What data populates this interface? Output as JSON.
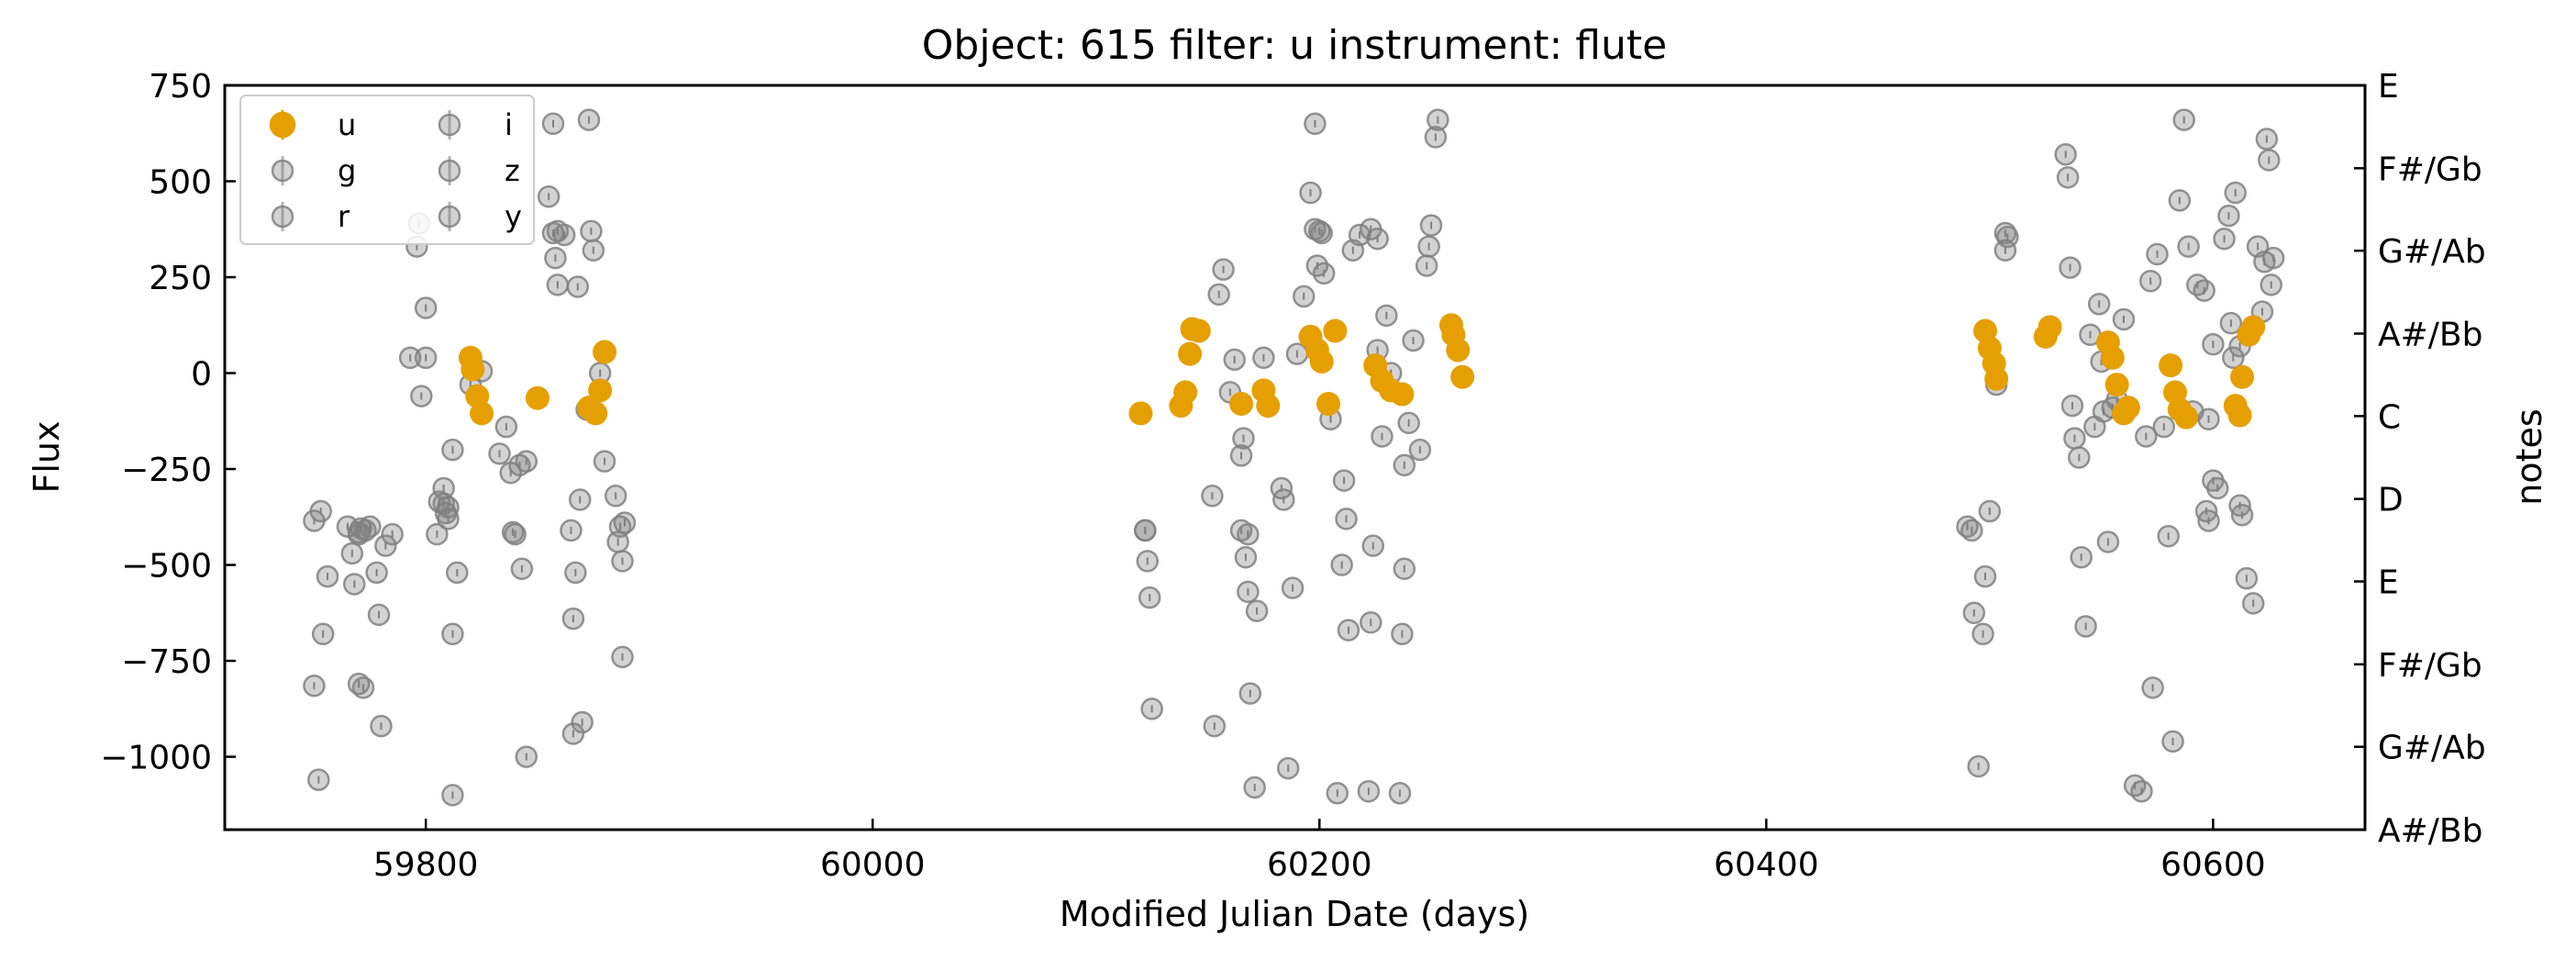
{
  "chart_data": {
    "type": "scatter",
    "title": "Object: 615 filter: u instrument: flute",
    "xlabel": "Modified Julian Date (days)",
    "ylabel": "Flux",
    "y2label": "notes",
    "xlim": [
      59710,
      60668
    ],
    "ylim": [
      -1190,
      750
    ],
    "xticks": [
      59800,
      60000,
      60200,
      60400,
      60600
    ],
    "yticks": [
      750,
      500,
      250,
      0,
      -250,
      -500,
      -750,
      -1000
    ],
    "ytick_labels": [
      "750",
      "500",
      "250",
      "0",
      "−250",
      "−500",
      "−750",
      "−1000"
    ],
    "y2ticks": [
      {
        "y": 750,
        "label": "E"
      },
      {
        "y": 534,
        "label": "F#/Gb"
      },
      {
        "y": 319,
        "label": "G#/Ab"
      },
      {
        "y": 103,
        "label": "A#/Bb"
      },
      {
        "y": -112,
        "label": "C"
      },
      {
        "y": -328,
        "label": "D"
      },
      {
        "y": -543,
        "label": "E"
      },
      {
        "y": -759,
        "label": "F#/Gb"
      },
      {
        "y": -974,
        "label": "G#/Ab"
      },
      {
        "y": -1190,
        "label": "A#/Bb"
      }
    ],
    "legend": {
      "placement": "top-left",
      "columns": 2,
      "entries": [
        "u",
        "g",
        "r",
        "i",
        "z",
        "y"
      ]
    },
    "colors": {
      "u": "#e69f00",
      "others": "#808080"
    },
    "grid": false,
    "series": [
      {
        "name": "u",
        "highlight": true,
        "points": [
          [
            59820,
            40
          ],
          [
            59821,
            10
          ],
          [
            59823,
            -60
          ],
          [
            59825,
            -105
          ],
          [
            59850,
            -65
          ],
          [
            59873,
            -90
          ],
          [
            59876,
            -105
          ],
          [
            59878,
            -45
          ],
          [
            59880,
            55
          ],
          [
            60120,
            -105
          ],
          [
            60138,
            -85
          ],
          [
            60140,
            -50
          ],
          [
            60142,
            50
          ],
          [
            60143,
            115
          ],
          [
            60146,
            110
          ],
          [
            60165,
            -80
          ],
          [
            60175,
            -45
          ],
          [
            60177,
            -85
          ],
          [
            60196,
            95
          ],
          [
            60199,
            60
          ],
          [
            60201,
            30
          ],
          [
            60204,
            -80
          ],
          [
            60207,
            110
          ],
          [
            60225,
            20
          ],
          [
            60228,
            -20
          ],
          [
            60232,
            -45
          ],
          [
            60237,
            -55
          ],
          [
            60259,
            125
          ],
          [
            60260,
            100
          ],
          [
            60262,
            60
          ],
          [
            60264,
            -10
          ],
          [
            60498,
            110
          ],
          [
            60500,
            65
          ],
          [
            60502,
            25
          ],
          [
            60503,
            -15
          ],
          [
            60525,
            95
          ],
          [
            60527,
            120
          ],
          [
            60553,
            80
          ],
          [
            60555,
            40
          ],
          [
            60557,
            -30
          ],
          [
            60560,
            -105
          ],
          [
            60562,
            -90
          ],
          [
            60581,
            20
          ],
          [
            60583,
            -50
          ],
          [
            60585,
            -95
          ],
          [
            60588,
            -115
          ],
          [
            60610,
            -85
          ],
          [
            60612,
            -110
          ],
          [
            60613,
            -10
          ],
          [
            60616,
            100
          ],
          [
            60618,
            120
          ]
        ]
      },
      {
        "name": "g",
        "points": [
          [
            59750,
            -385
          ],
          [
            59752,
            -1060
          ],
          [
            59753,
            -360
          ],
          [
            59754,
            -680
          ],
          [
            59756,
            -530
          ],
          [
            59750,
            -815
          ],
          [
            59765,
            -400
          ],
          [
            59767,
            -470
          ],
          [
            59768,
            -550
          ],
          [
            59770,
            -810
          ],
          [
            59772,
            -820
          ],
          [
            59770,
            -415
          ],
          [
            59775,
            -400
          ],
          [
            59778,
            -520
          ],
          [
            59779,
            -630
          ],
          [
            59780,
            -920
          ],
          [
            59782,
            -450
          ],
          [
            59785,
            -420
          ],
          [
            59793,
            40
          ],
          [
            59796,
            330
          ],
          [
            59797,
            390
          ],
          [
            59798,
            -60
          ],
          [
            59800,
            170
          ],
          [
            59800,
            40
          ],
          [
            59805,
            -420
          ],
          [
            59806,
            -335
          ],
          [
            59808,
            -300
          ],
          [
            59809,
            -365
          ],
          [
            59810,
            -350
          ],
          [
            59812,
            -200
          ],
          [
            59814,
            -520
          ],
          [
            59812,
            -1100
          ],
          [
            59812,
            -680
          ],
          [
            59820,
            -30
          ],
          [
            59825,
            5
          ],
          [
            59833,
            -210
          ],
          [
            59838,
            -260
          ],
          [
            59836,
            -140
          ],
          [
            59840,
            -420
          ],
          [
            59842,
            -240
          ],
          [
            59843,
            -510
          ],
          [
            59845,
            -1000
          ],
          [
            59845,
            -230
          ],
          [
            59855,
            460
          ],
          [
            59857,
            650
          ],
          [
            59858,
            300
          ],
          [
            59859,
            230
          ],
          [
            59862,
            360
          ],
          [
            59865,
            -410
          ],
          [
            59866,
            -640
          ],
          [
            59866,
            -940
          ],
          [
            59867,
            -520
          ],
          [
            59868,
            225
          ],
          [
            59869,
            -330
          ],
          [
            59870,
            -910
          ],
          [
            59873,
            660
          ],
          [
            59874,
            370
          ],
          [
            59875,
            320
          ],
          [
            59878,
            0
          ],
          [
            59880,
            -230
          ],
          [
            59885,
            -320
          ],
          [
            59886,
            -440
          ],
          [
            59888,
            -740
          ],
          [
            59889,
            -390
          ],
          [
            59887,
            -400
          ],
          [
            59888,
            -490
          ]
        ]
      },
      {
        "name": "r",
        "points": [
          [
            60122,
            -410
          ],
          [
            60123,
            -490
          ],
          [
            60124,
            -585
          ],
          [
            60125,
            -875
          ],
          [
            60152,
            -320
          ],
          [
            60153,
            -920
          ],
          [
            60155,
            205
          ],
          [
            60157,
            270
          ],
          [
            60160,
            -50
          ],
          [
            60162,
            35
          ],
          [
            60165,
            -215
          ],
          [
            60166,
            -170
          ],
          [
            60167,
            -480
          ],
          [
            60168,
            -570
          ],
          [
            60169,
            -835
          ],
          [
            60171,
            -1080
          ],
          [
            60172,
            -620
          ],
          [
            60175,
            40
          ],
          [
            60183,
            -300
          ],
          [
            60184,
            -330
          ],
          [
            60186,
            -1030
          ],
          [
            60188,
            -560
          ],
          [
            60190,
            50
          ],
          [
            60193,
            200
          ],
          [
            60196,
            470
          ],
          [
            60198,
            650
          ],
          [
            60199,
            280
          ],
          [
            60200,
            370
          ],
          [
            60202,
            260
          ],
          [
            60205,
            -120
          ],
          [
            60208,
            -1095
          ],
          [
            60210,
            -500
          ],
          [
            60211,
            -280
          ],
          [
            60212,
            -380
          ],
          [
            60213,
            -670
          ],
          [
            60215,
            320
          ],
          [
            60218,
            360
          ],
          [
            60222,
            -1090
          ],
          [
            60223,
            -650
          ],
          [
            60224,
            -450
          ],
          [
            60226,
            60
          ],
          [
            60228,
            -165
          ],
          [
            60230,
            150
          ],
          [
            60232,
            0
          ],
          [
            60236,
            -1095
          ],
          [
            60237,
            -680
          ],
          [
            60238,
            -510
          ],
          [
            60238,
            -240
          ],
          [
            60240,
            -130
          ],
          [
            60242,
            85
          ],
          [
            60245,
            -200
          ],
          [
            60248,
            280
          ],
          [
            60249,
            330
          ],
          [
            60250,
            385
          ],
          [
            60252,
            615
          ],
          [
            60253,
            660
          ]
        ]
      },
      {
        "name": "i",
        "points": [
          [
            60493,
            -625
          ],
          [
            60495,
            -1025
          ],
          [
            60497,
            -680
          ],
          [
            60498,
            -530
          ],
          [
            60500,
            -360
          ],
          [
            60503,
            -30
          ],
          [
            60507,
            320
          ],
          [
            60534,
            570
          ],
          [
            60535,
            510
          ],
          [
            60536,
            275
          ],
          [
            60537,
            -85
          ],
          [
            60538,
            -170
          ],
          [
            60540,
            -220
          ],
          [
            60541,
            -480
          ],
          [
            60543,
            -660
          ],
          [
            60545,
            100
          ],
          [
            60547,
            -140
          ],
          [
            60549,
            180
          ],
          [
            60550,
            30
          ],
          [
            60551,
            -100
          ],
          [
            60553,
            -440
          ],
          [
            60555,
            -90
          ],
          [
            60557,
            -70
          ],
          [
            60560,
            140
          ],
          [
            60565,
            -1075
          ],
          [
            60568,
            -1090
          ],
          [
            60570,
            -165
          ],
          [
            60572,
            240
          ],
          [
            60573,
            -820
          ],
          [
            60575,
            310
          ],
          [
            60578,
            -140
          ],
          [
            60580,
            -425
          ],
          [
            60582,
            -960
          ],
          [
            60585,
            450
          ],
          [
            60587,
            660
          ],
          [
            60589,
            330
          ],
          [
            60591,
            -100
          ],
          [
            60593,
            230
          ],
          [
            60596,
            215
          ],
          [
            60598,
            -120
          ],
          [
            60600,
            75
          ],
          [
            60602,
            -300
          ]
        ]
      },
      {
        "name": "z",
        "points": [
          [
            60605,
            350
          ],
          [
            60607,
            410
          ],
          [
            60608,
            130
          ],
          [
            60609,
            40
          ],
          [
            60610,
            470
          ],
          [
            60612,
            70
          ],
          [
            60615,
            -535
          ],
          [
            60618,
            -600
          ],
          [
            60620,
            330
          ],
          [
            60622,
            160
          ],
          [
            60623,
            290
          ],
          [
            60624,
            610
          ],
          [
            60625,
            555
          ],
          [
            60626,
            230
          ],
          [
            60627,
            300
          ],
          [
            60597,
            -360
          ],
          [
            60598,
            -385
          ]
        ]
      },
      {
        "name": "y",
        "points": [
          [
            59770,
            -420
          ],
          [
            59771,
            -405
          ],
          [
            59773,
            -410
          ],
          [
            59808,
            -340
          ],
          [
            59810,
            -380
          ],
          [
            59839,
            -415
          ],
          [
            59857,
            365
          ],
          [
            59859,
            370
          ],
          [
            59872,
            -95
          ],
          [
            60122,
            -410
          ],
          [
            60165,
            -410
          ],
          [
            60168,
            -420
          ],
          [
            60198,
            375
          ],
          [
            60201,
            365
          ],
          [
            60223,
            375
          ],
          [
            60226,
            350
          ],
          [
            60490,
            -400
          ],
          [
            60492,
            -410
          ],
          [
            60507,
            365
          ],
          [
            60508,
            355
          ],
          [
            60612,
            -345
          ],
          [
            60613,
            -370
          ],
          [
            60600,
            -280
          ]
        ]
      }
    ]
  }
}
